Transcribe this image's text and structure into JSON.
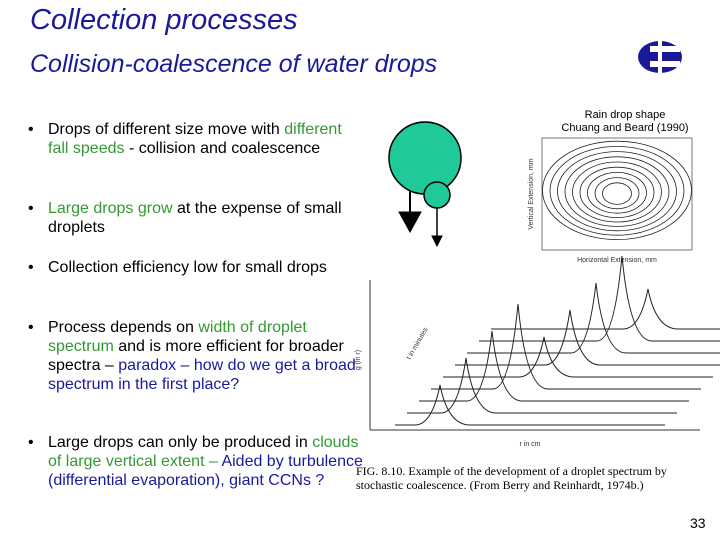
{
  "header": {
    "title": "Collection processes",
    "subtitle": "Collision-coalescence of water drops"
  },
  "bullets": [
    [
      {
        "text": "Drops of different size move with ",
        "color": "#000000"
      },
      {
        "text": "different fall speeds",
        "color": "#339933"
      },
      {
        "text": "  - collision and coalescence",
        "color": "#000000"
      }
    ],
    [
      {
        "text": "Large drops grow",
        "color": "#339933"
      },
      {
        "text": " at the expense of small droplets",
        "color": "#000000"
      }
    ],
    [
      {
        "text": "Collection efficiency low for small drops",
        "color": "#000000"
      }
    ],
    [
      {
        "text": "Process depends on ",
        "color": "#000000"
      },
      {
        "text": "width of droplet spectrum",
        "color": "#339933"
      },
      {
        "text": " and is more efficient for broader spectra – ",
        "color": "#000000"
      },
      {
        "text": "paradox – how do we get a broad spectrum in the first place?",
        "color": "#1a1a99"
      }
    ],
    [
      {
        "text": "Large drops can only be produced in ",
        "color": "#000000"
      },
      {
        "text": "clouds of large vertical extent –",
        "color": "#339933"
      },
      {
        "text": " Aided by turbulence (differential evaporation), giant CCNs ?",
        "color": "#1a1a99"
      }
    ]
  ],
  "raindrop_figure": {
    "caption_line1": "Rain drop shape",
    "caption_line2": "Chuang and Beard (1990)",
    "x_label": "Horizontal Extension, mm",
    "y_label": "Vertical Extension, mm"
  },
  "spectrum_figure": {
    "x_label": "r in cm",
    "y_label": "g (ln r)",
    "time_label": "t in minutes",
    "caption": "FIG. 8.10. Example of the development of a droplet spectrum by stochastic coalescence. (From Berry and Reinhardt, 1974b.)"
  },
  "page_number": "33"
}
